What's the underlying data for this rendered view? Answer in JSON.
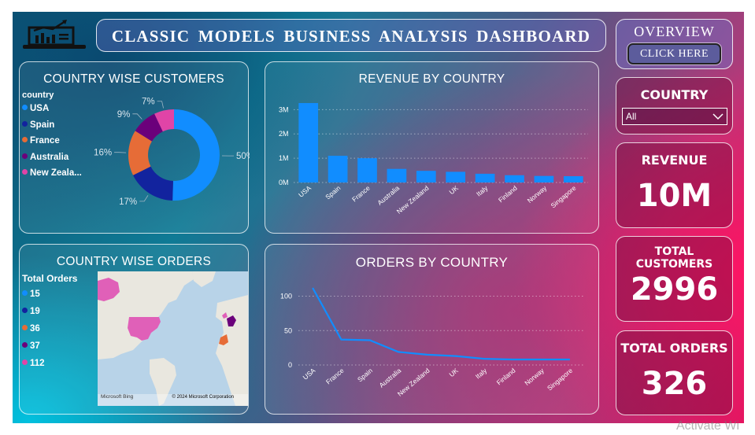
{
  "header": {
    "title": "CLASSIC MODELS BUSINESS ANALYSIS DASHBOARD",
    "logo_icon": "analytics-laptop-icon"
  },
  "overview": {
    "title": "OVERVIEW",
    "button_label": "CLICK HERE"
  },
  "country_filter": {
    "title": "COUNTRY",
    "selected": "All"
  },
  "kpis": {
    "revenue_title": "REVENUE",
    "revenue_value": "10M",
    "customers_title": "TOTAL CUSTOMERS",
    "customers_value": "2996",
    "orders_title": "TOTAL ORDERS",
    "orders_value": "326"
  },
  "customers_panel": {
    "title": "COUNTRY WISE CUSTOMERS",
    "legend_title": "country",
    "legend": [
      {
        "label": "USA",
        "color": "#118dff"
      },
      {
        "label": "Spain",
        "color": "#12239e"
      },
      {
        "label": "France",
        "color": "#e66c37"
      },
      {
        "label": "Australia",
        "color": "#6b007b"
      },
      {
        "label": "New Zeala...",
        "color": "#e044a7"
      }
    ]
  },
  "orders_map_panel": {
    "title": "COUNTRY WISE ORDERS",
    "legend_title": "Total Orders",
    "legend": [
      {
        "label": "15",
        "color": "#118dff"
      },
      {
        "label": "19",
        "color": "#12239e"
      },
      {
        "label": "36",
        "color": "#e66c37"
      },
      {
        "label": "37",
        "color": "#6b007b"
      },
      {
        "label": "112",
        "color": "#e044a7"
      }
    ],
    "map_brand": "Microsoft Bing",
    "map_copyright": "© 2024 Microsoft Corporation"
  },
  "watermark": "Activate Wi",
  "chart_data": [
    {
      "type": "pie",
      "title": "COUNTRY WISE CUSTOMERS",
      "donut": true,
      "categories": [
        "USA",
        "Spain",
        "France",
        "Australia",
        "New Zealand"
      ],
      "values": [
        50,
        17,
        16,
        9,
        7
      ],
      "labels": [
        "50%",
        "17%",
        "16%",
        "9%",
        "7%"
      ],
      "colors": [
        "#118dff",
        "#12239e",
        "#e66c37",
        "#6b007b",
        "#e044a7"
      ],
      "legend": "left"
    },
    {
      "type": "bar",
      "title": "REVENUE BY COUNTRY",
      "categories": [
        "USA",
        "Spain",
        "France",
        "Australia",
        "New Zealand",
        "UK",
        "Italy",
        "Finland",
        "Norway",
        "Singapore"
      ],
      "values": [
        3.27,
        1.1,
        1.0,
        0.56,
        0.48,
        0.44,
        0.36,
        0.3,
        0.27,
        0.26
      ],
      "unit": "M",
      "yticks": [
        "0M",
        "1M",
        "2M",
        "3M"
      ],
      "ylim": [
        0,
        3.4
      ],
      "color": "#118dff",
      "grid": true
    },
    {
      "type": "line",
      "title": "ORDERS BY COUNTRY",
      "categories": [
        "USA",
        "France",
        "Spain",
        "Australia",
        "New Zealand",
        "UK",
        "Italy",
        "Finland",
        "Norway",
        "Singapore"
      ],
      "values": [
        112,
        37,
        36,
        19,
        15,
        13,
        9,
        8,
        8,
        8
      ],
      "yticks": [
        "0",
        "50",
        "100"
      ],
      "ylim": [
        0,
        120
      ],
      "color": "#118dff",
      "grid": true
    }
  ]
}
